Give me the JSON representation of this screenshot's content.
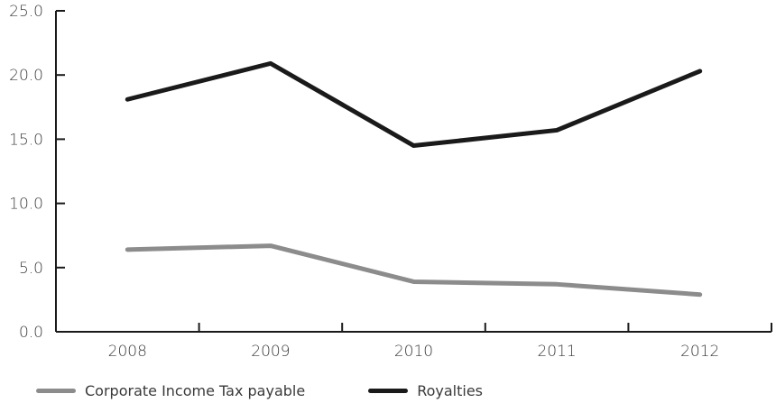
{
  "chart_data": {
    "type": "line",
    "categories": [
      "2008",
      "2009",
      "2010",
      "2011",
      "2012"
    ],
    "series": [
      {
        "name": "Corporate Income Tax payable",
        "values": [
          6.4,
          6.7,
          3.9,
          3.7,
          2.9
        ],
        "color": "#8c8c8c"
      },
      {
        "name": "Royalties",
        "values": [
          18.1,
          20.9,
          14.5,
          15.7,
          20.3
        ],
        "color": "#1a1a1a"
      }
    ],
    "yticks": [
      "0.0",
      "5.0",
      "10.0",
      "15.0",
      "20.0",
      "25.0"
    ],
    "ylim": [
      0,
      25
    ],
    "title": "",
    "xlabel": "",
    "ylabel": "",
    "grid": false,
    "legend_position": "bottom-left",
    "axis_color": "#1a1a1a"
  }
}
